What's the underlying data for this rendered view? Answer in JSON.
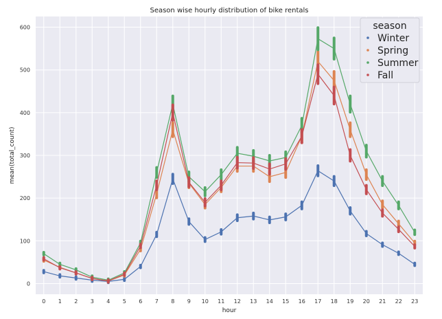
{
  "chart_data": {
    "type": "line",
    "title": "Season wise hourly distribution of bike rentals",
    "xlabel": "hour",
    "ylabel": "mean(total_count)",
    "x": [
      0,
      1,
      2,
      3,
      4,
      5,
      6,
      7,
      8,
      9,
      10,
      11,
      12,
      13,
      14,
      15,
      16,
      17,
      18,
      19,
      20,
      21,
      22,
      23
    ],
    "xlim": [
      -0.5,
      23.5
    ],
    "ylim": [
      -25,
      625
    ],
    "yticks": [
      0,
      100,
      200,
      300,
      400,
      500,
      600
    ],
    "grid": true,
    "legend": {
      "title": "season",
      "position": "top-right"
    },
    "series": [
      {
        "name": "Winter",
        "color": "#4c72b0",
        "values": [
          28,
          18,
          13,
          8,
          5,
          10,
          40,
          115,
          245,
          145,
          103,
          121,
          154,
          158,
          149,
          156,
          183,
          264,
          240,
          170,
          117,
          91,
          71,
          45
        ]
      },
      {
        "name": "Spring",
        "color": "#dd8452",
        "values": [
          55,
          38,
          25,
          12,
          6,
          20,
          80,
          210,
          360,
          235,
          185,
          225,
          275,
          275,
          250,
          260,
          345,
          520,
          475,
          360,
          255,
          185,
          140,
          95
        ]
      },
      {
        "name": "Summer",
        "color": "#55a868",
        "values": [
          70,
          45,
          32,
          15,
          8,
          25,
          95,
          260,
          420,
          250,
          215,
          255,
          305,
          298,
          287,
          295,
          370,
          573,
          550,
          420,
          310,
          240,
          183,
          120
        ]
      },
      {
        "name": "Fall",
        "color": "#c44e52",
        "values": [
          58,
          37,
          25,
          12,
          6,
          22,
          88,
          230,
          400,
          237,
          190,
          230,
          283,
          282,
          268,
          280,
          345,
          490,
          440,
          300,
          220,
          165,
          127,
          87
        ]
      }
    ]
  }
}
